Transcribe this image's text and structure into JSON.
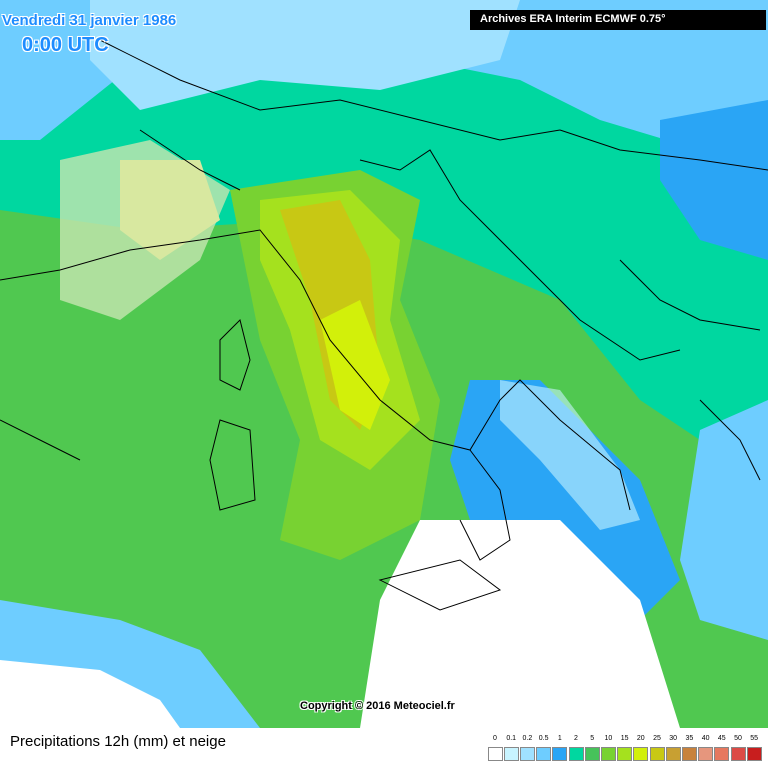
{
  "header": {
    "date": "Vendredi 31 janvier 1986",
    "time": "0:00 UTC",
    "source": "Archives ERA Interim ECMWF 0.75°"
  },
  "copyright": "Copyright © 2016 Meteociel.fr",
  "footer": {
    "title": "Precipitations 12h (mm) et neige"
  },
  "legend": {
    "labels": [
      0,
      0.1,
      0.2,
      0.5,
      1,
      2,
      5,
      10,
      15,
      20,
      25,
      30,
      35,
      40,
      45,
      50,
      55
    ],
    "colors": [
      "#ffffff",
      "#c8f4ff",
      "#a0e1ff",
      "#6ecdff",
      "#2aa5f5",
      "#00d7a0",
      "#46c35a",
      "#78d232",
      "#a5e11e",
      "#d2f00a",
      "#c8c814",
      "#c8a032",
      "#c8823c",
      "#e6967d",
      "#e6785f",
      "#dc4b46",
      "#c81e1e"
    ]
  }
}
